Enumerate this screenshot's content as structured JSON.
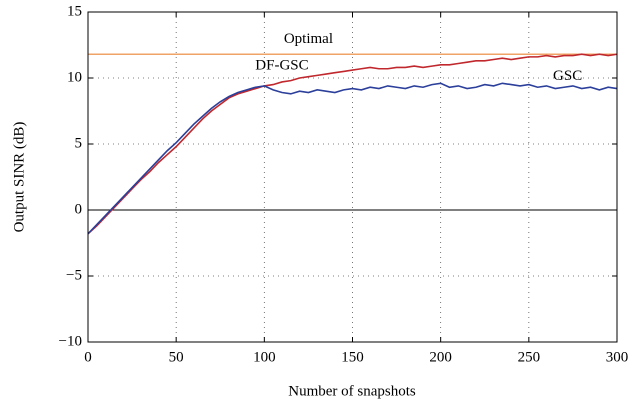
{
  "chart_data": {
    "type": "line",
    "xlabel": "Number of snapshots",
    "ylabel": "Output SINR (dB)",
    "annotations": [
      {
        "text": "Optimal",
        "x": 125,
        "y": 12.9
      },
      {
        "text": "DF-GSC",
        "x": 110,
        "y": 10.9
      },
      {
        "text": "GSC",
        "x": 272,
        "y": 10.1
      }
    ],
    "x": [
      0,
      5,
      10,
      15,
      20,
      25,
      30,
      35,
      40,
      45,
      50,
      55,
      60,
      65,
      70,
      75,
      80,
      85,
      90,
      95,
      100,
      105,
      110,
      115,
      120,
      125,
      130,
      135,
      140,
      145,
      150,
      155,
      160,
      165,
      170,
      175,
      180,
      185,
      190,
      195,
      200,
      205,
      210,
      215,
      220,
      225,
      230,
      235,
      240,
      245,
      250,
      255,
      260,
      265,
      270,
      275,
      280,
      285,
      290,
      295,
      300
    ],
    "series": [
      {
        "name": "Optimal",
        "color": "#f0a366",
        "values": [
          11.8,
          11.8,
          11.8,
          11.8,
          11.8,
          11.8,
          11.8,
          11.8,
          11.8,
          11.8,
          11.8,
          11.8,
          11.8,
          11.8,
          11.8,
          11.8,
          11.8,
          11.8,
          11.8,
          11.8,
          11.8,
          11.8,
          11.8,
          11.8,
          11.8,
          11.8,
          11.8,
          11.8,
          11.8,
          11.8,
          11.8,
          11.8,
          11.8,
          11.8,
          11.8,
          11.8,
          11.8,
          11.8,
          11.8,
          11.8,
          11.8,
          11.8,
          11.8,
          11.8,
          11.8,
          11.8,
          11.8,
          11.8,
          11.8,
          11.8,
          11.8,
          11.8,
          11.8,
          11.8,
          11.8,
          11.8,
          11.8,
          11.8,
          11.8,
          11.8,
          11.8
        ]
      },
      {
        "name": "DF-GSC",
        "color": "#c0282d",
        "values": [
          -1.8,
          -1.2,
          -0.5,
          0.2,
          0.9,
          1.6,
          2.3,
          2.9,
          3.6,
          4.2,
          4.8,
          5.5,
          6.2,
          6.9,
          7.5,
          8.0,
          8.5,
          8.8,
          9.0,
          9.2,
          9.4,
          9.5,
          9.7,
          9.8,
          10.0,
          10.1,
          10.2,
          10.3,
          10.4,
          10.5,
          10.6,
          10.7,
          10.8,
          10.7,
          10.7,
          10.8,
          10.8,
          10.9,
          10.8,
          10.9,
          11.0,
          11.0,
          11.1,
          11.2,
          11.3,
          11.3,
          11.4,
          11.5,
          11.4,
          11.5,
          11.6,
          11.6,
          11.7,
          11.6,
          11.7,
          11.7,
          11.8,
          11.7,
          11.8,
          11.7,
          11.8
        ]
      },
      {
        "name": "GSC",
        "color": "#2b3f9b",
        "values": [
          -1.8,
          -1.1,
          -0.4,
          0.3,
          1.0,
          1.7,
          2.4,
          3.1,
          3.8,
          4.5,
          5.1,
          5.8,
          6.5,
          7.1,
          7.7,
          8.2,
          8.6,
          8.9,
          9.1,
          9.3,
          9.4,
          9.1,
          8.9,
          8.8,
          9.0,
          8.9,
          9.1,
          9.0,
          8.9,
          9.1,
          9.2,
          9.1,
          9.3,
          9.2,
          9.4,
          9.3,
          9.2,
          9.4,
          9.3,
          9.5,
          9.6,
          9.3,
          9.4,
          9.2,
          9.3,
          9.5,
          9.4,
          9.6,
          9.5,
          9.4,
          9.5,
          9.3,
          9.4,
          9.2,
          9.3,
          9.4,
          9.2,
          9.3,
          9.1,
          9.3,
          9.2
        ]
      }
    ],
    "xlim": [
      0,
      300
    ],
    "xticks": [
      0,
      50,
      100,
      150,
      200,
      250,
      300
    ],
    "ylim": [
      -10,
      15
    ],
    "yticks": [
      {
        "value": -10,
        "label": "−10"
      },
      {
        "value": -5,
        "label": "−5"
      },
      0,
      5,
      10,
      15
    ],
    "grid": true
  }
}
